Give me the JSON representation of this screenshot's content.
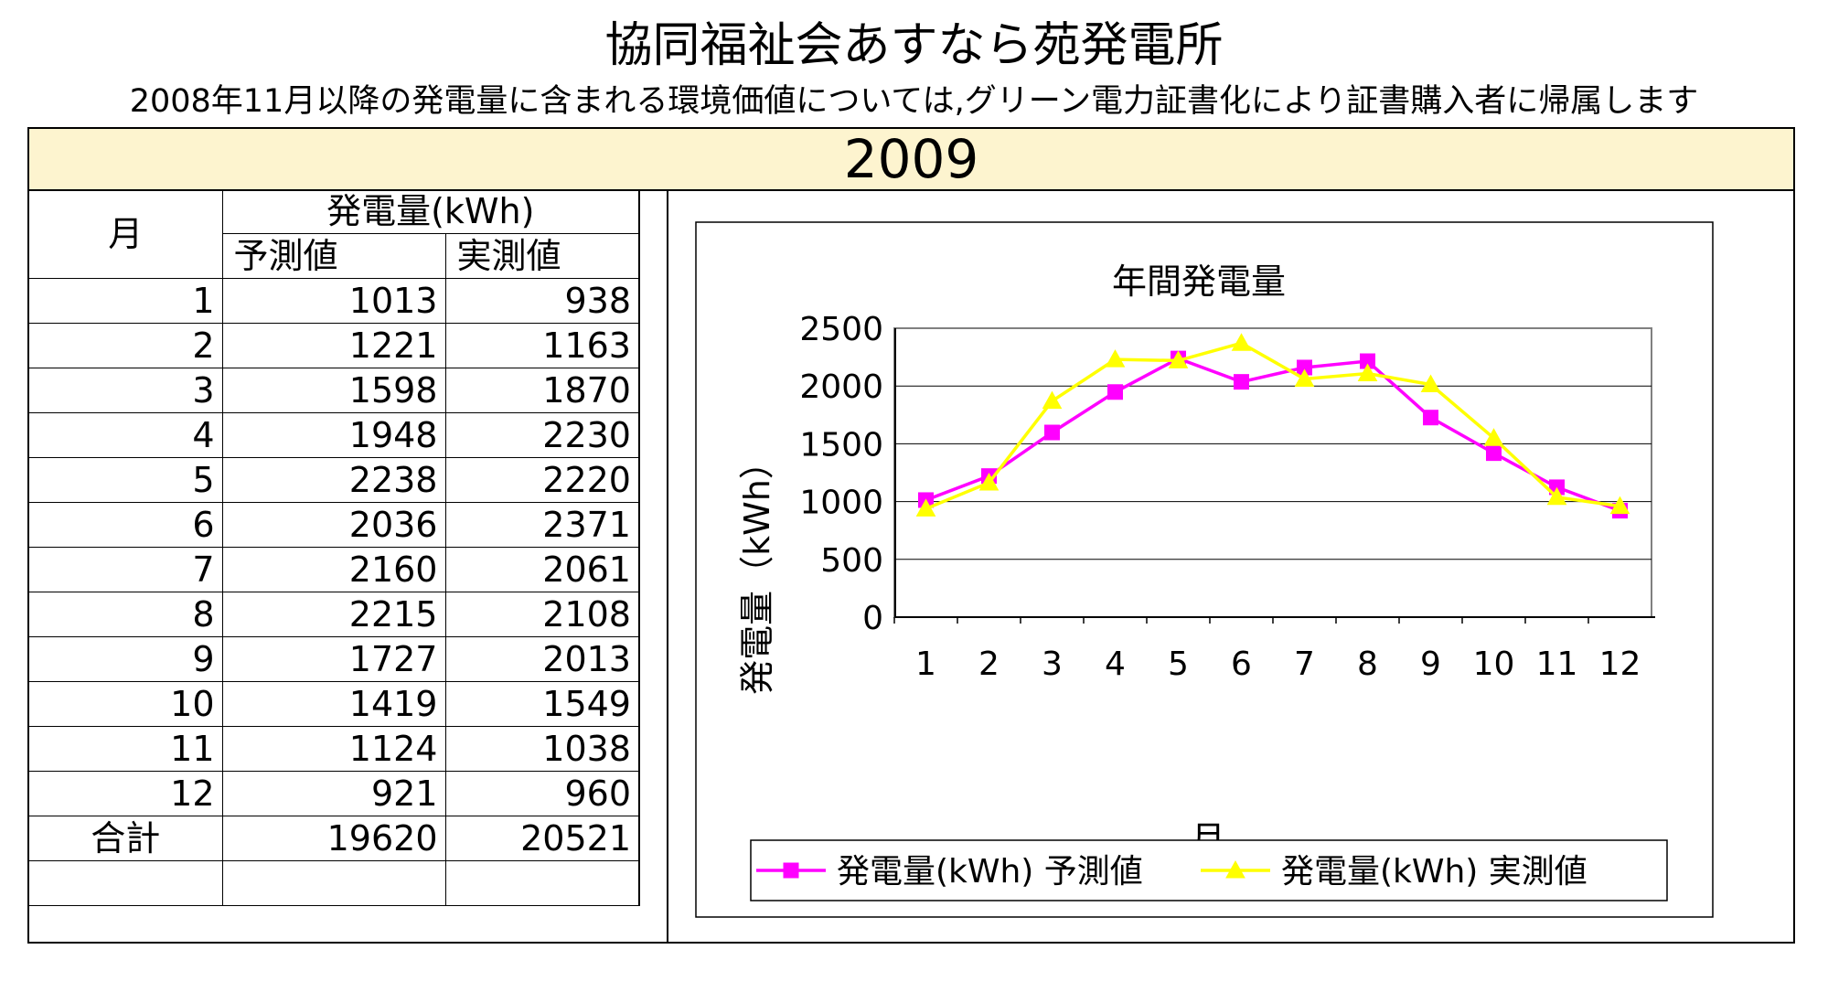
{
  "header": {
    "title": "協同福祉会あすなら苑発電所",
    "subtitle": "2008年11月以降の発電量に含まれる環境価値については,グリーン電力証書化により証書購入者に帰属します",
    "year": "2009"
  },
  "table": {
    "col_month": "月",
    "col_group": "発電量(kWh)",
    "col_forecast": "予測値",
    "col_actual": "実測値",
    "rows": [
      {
        "month": "1",
        "forecast": "1013",
        "actual": "938"
      },
      {
        "month": "2",
        "forecast": "1221",
        "actual": "1163"
      },
      {
        "month": "3",
        "forecast": "1598",
        "actual": "1870"
      },
      {
        "month": "4",
        "forecast": "1948",
        "actual": "2230"
      },
      {
        "month": "5",
        "forecast": "2238",
        "actual": "2220"
      },
      {
        "month": "6",
        "forecast": "2036",
        "actual": "2371"
      },
      {
        "month": "7",
        "forecast": "2160",
        "actual": "2061"
      },
      {
        "month": "8",
        "forecast": "2215",
        "actual": "2108"
      },
      {
        "month": "9",
        "forecast": "1727",
        "actual": "2013"
      },
      {
        "month": "10",
        "forecast": "1419",
        "actual": "1549"
      },
      {
        "month": "11",
        "forecast": "1124",
        "actual": "1038"
      },
      {
        "month": "12",
        "forecast": "921",
        "actual": "960"
      }
    ],
    "total_label": "合計",
    "total_forecast": "19620",
    "total_actual": "20521"
  },
  "chart_data": {
    "type": "line",
    "title": "年間発電量",
    "xlabel": "月",
    "ylabel": "発電量（kWh）",
    "categories": [
      "1",
      "2",
      "3",
      "4",
      "5",
      "6",
      "7",
      "8",
      "9",
      "10",
      "11",
      "12"
    ],
    "ylim": [
      0,
      2500
    ],
    "yticks": [
      0,
      500,
      1000,
      1500,
      2000,
      2500
    ],
    "grid": true,
    "legend_position": "bottom",
    "series": [
      {
        "name": "発電量(kWh) 予測値",
        "color": "#ff00ff",
        "marker": "square",
        "values": [
          1013,
          1221,
          1598,
          1948,
          2238,
          2036,
          2160,
          2215,
          1727,
          1419,
          1124,
          921
        ]
      },
      {
        "name": "発電量(kWh) 実測値",
        "color": "#ffff00",
        "marker": "triangle",
        "values": [
          938,
          1163,
          1870,
          2230,
          2220,
          2371,
          2061,
          2108,
          2013,
          1549,
          1038,
          960
        ]
      }
    ]
  },
  "colors": {
    "year_bar_bg": "#fdf4cf",
    "plot_bg": "#ffffff",
    "forecast": "#ff00ff",
    "actual": "#ffff00"
  }
}
